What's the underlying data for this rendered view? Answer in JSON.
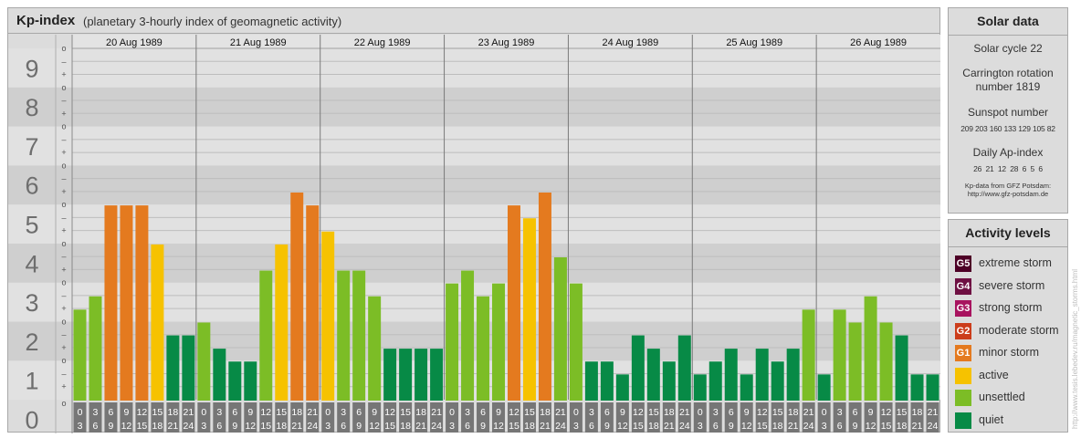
{
  "chart": {
    "title": "Kp-index",
    "subtitle": "(planetary 3-hourly index of geomagnetic activity)"
  },
  "chart_data": {
    "type": "bar",
    "title": "Kp-index",
    "subtitle": "(planetary 3-hourly index of geomagnetic activity)",
    "ylim": [
      0,
      9
    ],
    "y_ticks": [
      "0",
      "1",
      "2",
      "3",
      "4",
      "5",
      "6",
      "7",
      "8",
      "9"
    ],
    "minor_ticks": [
      "–",
      "o",
      "+"
    ],
    "days": [
      "20 Aug 1989",
      "21 Aug 1989",
      "22 Aug 1989",
      "23 Aug 1989",
      "24 Aug 1989",
      "25 Aug 1989",
      "26 Aug 1989"
    ],
    "interval_labels": [
      [
        "0",
        "3"
      ],
      [
        "3",
        "6"
      ],
      [
        "6",
        "9"
      ],
      [
        "9",
        "12"
      ],
      [
        "12",
        "15"
      ],
      [
        "15",
        "18"
      ],
      [
        "18",
        "21"
      ],
      [
        "21",
        "24"
      ]
    ],
    "values": [
      [
        2.33,
        2.67,
        5.0,
        5.0,
        5.0,
        4.0,
        1.67,
        1.67
      ],
      [
        2.0,
        1.33,
        1.0,
        1.0,
        3.33,
        4.0,
        5.33,
        5.0
      ],
      [
        4.33,
        3.33,
        3.33,
        2.67,
        1.33,
        1.33,
        1.33,
        1.33
      ],
      [
        3.0,
        3.33,
        2.67,
        3.0,
        5.0,
        4.67,
        5.33,
        3.67
      ],
      [
        3.0,
        1.0,
        1.0,
        0.67,
        1.67,
        1.33,
        1.0,
        1.67
      ],
      [
        0.67,
        1.0,
        1.33,
        0.67,
        1.33,
        1.0,
        1.33,
        2.33
      ],
      [
        0.67,
        2.33,
        2.0,
        2.67,
        2.0,
        1.67,
        0.67,
        0.67
      ]
    ]
  },
  "solar": {
    "title": "Solar data",
    "cycle": "Solar cycle 22",
    "carrington_line1": "Carrington rotation",
    "carrington_line2": "number 1819",
    "sunspot_title": "Sunspot number",
    "sunspot_values": "209 203 160 133 129 105 82",
    "ap_title": "Daily Ap-index",
    "ap_values": "26  21  12  28  6  5  6",
    "source_line1": "Kp-data from GFZ Potsdam:",
    "source_line2": "http://www.gfz-potsdam.de"
  },
  "levels": {
    "title": "Activity levels",
    "items": [
      {
        "badge": "G5",
        "label": "extreme storm",
        "color": "#4d0026"
      },
      {
        "badge": "G4",
        "label": "severe storm",
        "color": "#6e1042"
      },
      {
        "badge": "G3",
        "label": "strong storm",
        "color": "#a8135f"
      },
      {
        "badge": "G2",
        "label": "moderate storm",
        "color": "#cc3d1b"
      },
      {
        "badge": "G1",
        "label": "minor storm",
        "color": "#e47a1f"
      },
      {
        "badge": "",
        "label": "active",
        "color": "#f6c200"
      },
      {
        "badge": "",
        "label": "unsettled",
        "color": "#7cbd26"
      },
      {
        "badge": "",
        "label": "quiet",
        "color": "#078a46"
      }
    ]
  },
  "watermark": "http://www.tesis.lebedev.ru/magnetic_storms.html"
}
